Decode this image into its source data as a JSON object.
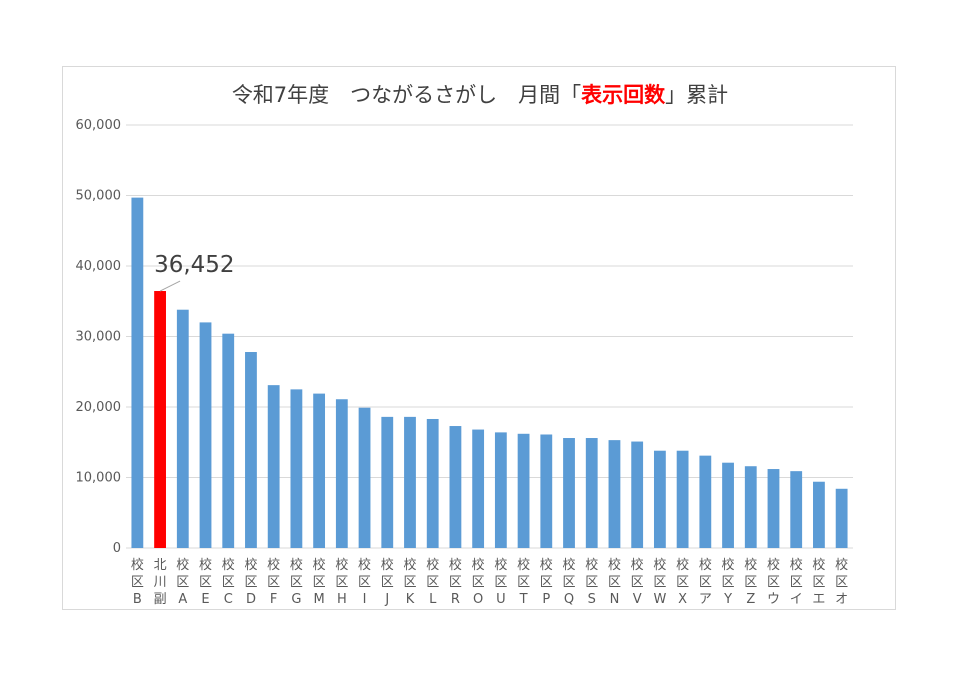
{
  "chart_data": {
    "type": "bar",
    "title": {
      "prefix": "令和7年度　つながるさがし　月間「",
      "highlight": "表示回数",
      "suffix": "」累計"
    },
    "xlabel": "",
    "ylabel": "",
    "ylim": [
      0,
      60000
    ],
    "yticks": [
      "0",
      "10,000",
      "20,000",
      "30,000",
      "40,000",
      "50,000",
      "60,000"
    ],
    "grid": true,
    "legend": "none",
    "categories": [
      "校区B",
      "北川副",
      "校区A",
      "校区E",
      "校区C",
      "校区D",
      "校区F",
      "校区G",
      "校区M",
      "校区H",
      "校区I",
      "校区J",
      "校区K",
      "校区L",
      "校区R",
      "校区O",
      "校区U",
      "校区T",
      "校区P",
      "校区Q",
      "校区S",
      "校区N",
      "校区V",
      "校区W",
      "校区X",
      "校区ア",
      "校区Y",
      "校区Z",
      "校区ウ",
      "校区イ",
      "校区エ",
      "校区オ"
    ],
    "values": [
      49700,
      36452,
      33800,
      32000,
      30400,
      27800,
      23100,
      22500,
      21900,
      21100,
      19900,
      18600,
      18600,
      18300,
      17300,
      16800,
      16400,
      16200,
      16100,
      15600,
      15600,
      15300,
      15100,
      13800,
      13800,
      13100,
      12100,
      11600,
      11200,
      10900,
      9400,
      8400
    ],
    "highlight_index": 1,
    "highlight_label": "36,452",
    "colors": {
      "bar": "#5b9bd5",
      "highlight": "#ff0000",
      "title_highlight": "#ff0000"
    }
  }
}
